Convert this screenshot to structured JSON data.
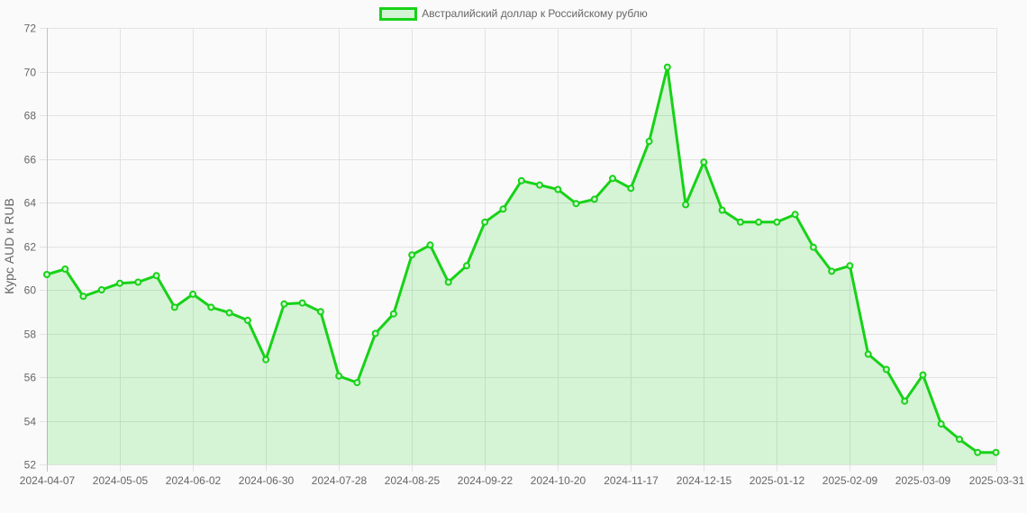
{
  "chart_data": {
    "type": "area",
    "legend": "Австралийский доллар к Российскому рублю",
    "ylabel": "Курс AUD к RUB",
    "ylim": [
      52,
      72
    ],
    "y_ticks": [
      52,
      54,
      56,
      58,
      60,
      62,
      64,
      66,
      68,
      70,
      72
    ],
    "x_label_every": 4,
    "x_tick_labels_visible": [
      "2024-04-07",
      "2024-05-05",
      "2024-06-02",
      "2024-06-30",
      "2024-07-28",
      "2024-08-25",
      "2024-09-22",
      "2024-10-20",
      "2024-11-17",
      "2024-12-15",
      "2025-01-12",
      "2025-02-09",
      "2025-03-09",
      "2025-03-31"
    ],
    "x": [
      "2024-04-07",
      "2024-04-14",
      "2024-04-21",
      "2024-04-28",
      "2024-05-05",
      "2024-05-12",
      "2024-05-19",
      "2024-05-26",
      "2024-06-02",
      "2024-06-09",
      "2024-06-16",
      "2024-06-23",
      "2024-06-30",
      "2024-07-07",
      "2024-07-14",
      "2024-07-21",
      "2024-07-28",
      "2024-08-04",
      "2024-08-11",
      "2024-08-18",
      "2024-08-25",
      "2024-09-01",
      "2024-09-08",
      "2024-09-15",
      "2024-09-22",
      "2024-09-29",
      "2024-10-06",
      "2024-10-13",
      "2024-10-20",
      "2024-10-27",
      "2024-11-03",
      "2024-11-10",
      "2024-11-17",
      "2024-11-24",
      "2024-12-01",
      "2024-12-08",
      "2024-12-15",
      "2024-12-22",
      "2024-12-29",
      "2025-01-05",
      "2025-01-12",
      "2025-01-19",
      "2025-01-26",
      "2025-02-02",
      "2025-02-09",
      "2025-02-16",
      "2025-02-23",
      "2025-03-02",
      "2025-03-09",
      "2025-03-16",
      "2025-03-23",
      "2025-03-30",
      "2025-03-31"
    ],
    "values": [
      60.7,
      60.95,
      59.7,
      60.0,
      60.3,
      60.35,
      60.65,
      59.2,
      59.8,
      59.2,
      58.95,
      58.6,
      56.8,
      59.35,
      59.4,
      59.0,
      56.05,
      55.75,
      58.0,
      58.9,
      61.6,
      62.05,
      60.35,
      61.1,
      63.1,
      63.7,
      65.0,
      64.8,
      64.6,
      63.95,
      64.15,
      65.1,
      64.65,
      66.8,
      70.2,
      63.9,
      65.85,
      63.65,
      63.1,
      63.1,
      63.1,
      63.45,
      61.95,
      60.85,
      61.1,
      57.05,
      56.35,
      54.9,
      56.1,
      53.85,
      53.15,
      52.55,
      52.55
    ],
    "grid": true,
    "legend_position": "top-center",
    "colors": {
      "line": "#17d217",
      "fill_rgba": "rgba(23,210,23,0.16)",
      "point_fill": "#d5f3d5",
      "grid": "#e2e2e2",
      "first_grid": "#c2c2c2",
      "text": "#666666",
      "background": "#fafafa"
    }
  }
}
